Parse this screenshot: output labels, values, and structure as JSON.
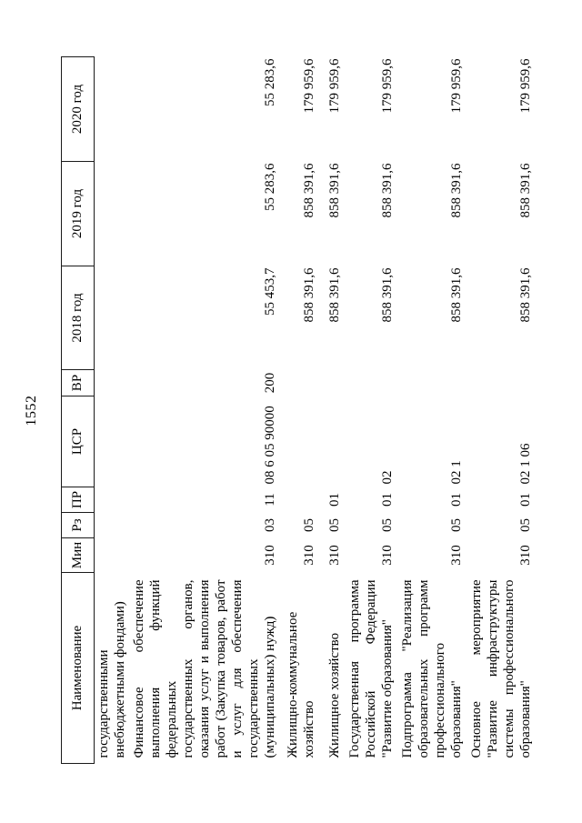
{
  "page": {
    "number": "1552"
  },
  "table": {
    "headers": {
      "name": "Наименование",
      "min": "Мин",
      "rz": "Рз",
      "pr": "ПР",
      "csr": "ЦСР",
      "vr": "ВР",
      "y2018": "2018 год",
      "y2019": "2019 год",
      "y2020": "2020 год"
    },
    "rows": [
      {
        "name": "государственными внебюджетными фондами)",
        "min": "",
        "rz": "",
        "pr": "",
        "csr": "",
        "vr": "",
        "y2018": "",
        "y2019": "",
        "y2020": ""
      },
      {
        "name": "Финансовое обеспечение выполнения функций федеральных государственных органов, оказания услуг и выполнения работ (Закупка товаров, работ и услуг для обеспечения государственных (муниципальных) нужд)",
        "min": "310",
        "rz": "03",
        "pr": "11",
        "csr": "08 6 05 90000",
        "vr": "200",
        "y2018": "55 453,7",
        "y2019": "55 283,6",
        "y2020": "55 283,6"
      },
      {
        "name": "Жилищно-коммунальное хозяйство",
        "min": "310",
        "rz": "05",
        "pr": "",
        "csr": "",
        "vr": "",
        "y2018": "858 391,6",
        "y2019": "858 391,6",
        "y2020": "179 959,6"
      },
      {
        "name": "Жилищное хозяйство",
        "min": "310",
        "rz": "05",
        "pr": "01",
        "csr": "",
        "vr": "",
        "y2018": "858 391,6",
        "y2019": "858 391,6",
        "y2020": "179 959,6"
      },
      {
        "name": "Государственная программа Российской Федерации \"Развитие образования\"",
        "min": "310",
        "rz": "05",
        "pr": "01",
        "csr": "02",
        "vr": "",
        "y2018": "858 391,6",
        "y2019": "858 391,6",
        "y2020": "179 959,6"
      },
      {
        "name": "Подпрограмма \"Реализация образовательных программ профессионального образования\"",
        "min": "310",
        "rz": "05",
        "pr": "01",
        "csr": "02 1",
        "vr": "",
        "y2018": "858 391,6",
        "y2019": "858 391,6",
        "y2020": "179 959,6"
      },
      {
        "name": "Основное мероприятие \"Развитие инфраструктуры системы профессионального образования\"",
        "min": "310",
        "rz": "05",
        "pr": "01",
        "csr": "02 1 06",
        "vr": "",
        "y2018": "858 391,6",
        "y2019": "858 391,6",
        "y2020": "179 959,6"
      }
    ]
  }
}
